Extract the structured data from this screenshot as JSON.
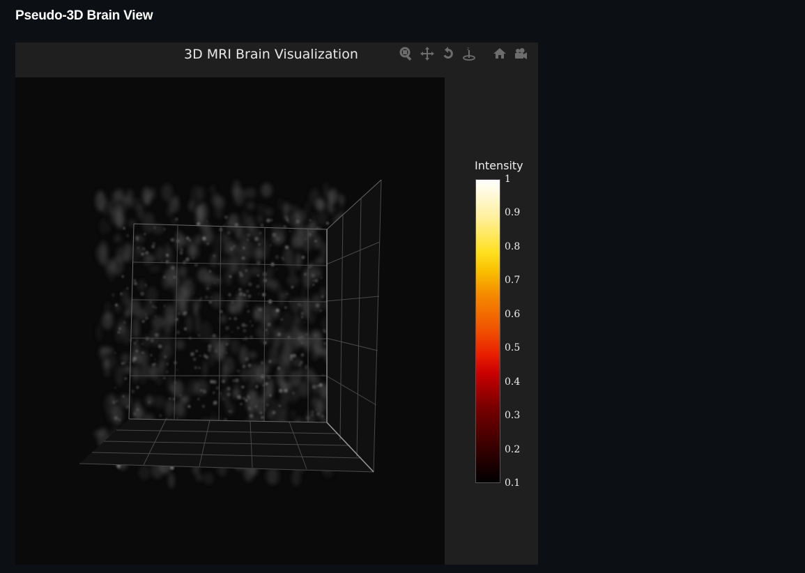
{
  "page": {
    "heading": "Pseudo-3D Brain View"
  },
  "plot": {
    "title": "3D MRI Brain Visualization",
    "modebar": [
      {
        "name": "zoom-icon",
        "label": "Zoom"
      },
      {
        "name": "pan-icon",
        "label": "Pan"
      },
      {
        "name": "orbit-rotation-icon",
        "label": "Orbital rotation"
      },
      {
        "name": "turntable-rotation-icon",
        "label": "Turntable rotation"
      },
      {
        "name": "home-icon",
        "label": "Reset camera to default"
      },
      {
        "name": "camera-icon",
        "label": "Download plot as png"
      }
    ],
    "colors": {
      "panel_bg": "#1f1f1f",
      "scene_bg": "#0a0a0a",
      "page_bg": "#0c0f14"
    }
  },
  "colorbar": {
    "title": "Intensity",
    "colorscale": "hot",
    "range": [
      0.1,
      1
    ],
    "ticks": [
      "1",
      "0.9",
      "0.8",
      "0.7",
      "0.6",
      "0.5",
      "0.4",
      "0.3",
      "0.2",
      "0.1"
    ]
  }
}
